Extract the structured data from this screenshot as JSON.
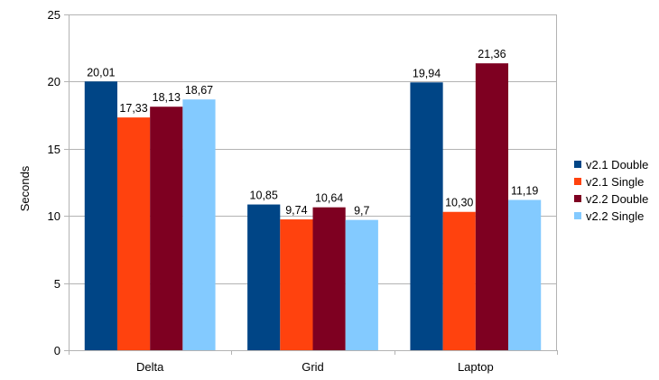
{
  "chart_data": {
    "type": "bar",
    "title": "",
    "xlabel": "",
    "ylabel": "Seconds",
    "ylim": [
      0,
      25
    ],
    "yticks": [
      0,
      5,
      10,
      15,
      20,
      25
    ],
    "grid": true,
    "legend_position": "right",
    "categories": [
      "Delta",
      "Grid",
      "Laptop"
    ],
    "series": [
      {
        "name": "v2.1 Double",
        "color": "#004586",
        "values": [
          20.01,
          10.85,
          19.94
        ],
        "labels": [
          "20,01",
          "10,85",
          "19,94"
        ]
      },
      {
        "name": "v2.1 Single",
        "color": "#ff420e",
        "values": [
          17.33,
          9.74,
          10.3
        ],
        "labels": [
          "17,33",
          "9,74",
          "10,30"
        ]
      },
      {
        "name": "v2.2 Double",
        "color": "#7e0021",
        "values": [
          18.13,
          10.64,
          21.36
        ],
        "labels": [
          "18,13",
          "10,64",
          "21,36"
        ]
      },
      {
        "name": "v2.2 Single",
        "color": "#83caff",
        "values": [
          18.67,
          9.7,
          11.19
        ],
        "labels": [
          "18,67",
          "9,7",
          "11,19"
        ]
      }
    ]
  }
}
